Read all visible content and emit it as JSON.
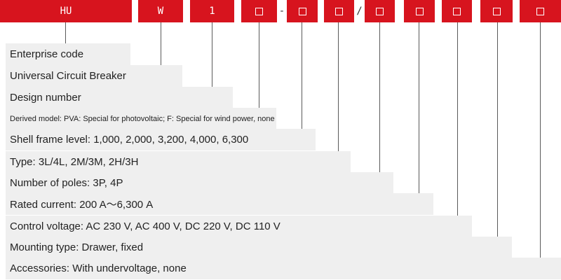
{
  "code_segments": [
    {
      "label": "HU",
      "square": false
    },
    {
      "label": "W",
      "square": false
    },
    {
      "label": "1",
      "square": false
    },
    {
      "label": "",
      "square": true
    },
    {
      "label": "",
      "square": true
    },
    {
      "label": "",
      "square": true
    },
    {
      "label": "",
      "square": true
    },
    {
      "label": "",
      "square": true
    },
    {
      "label": "",
      "square": true
    },
    {
      "label": "",
      "square": true
    },
    {
      "label": "",
      "square": true
    }
  ],
  "separators": [
    "-",
    "/"
  ],
  "rows": [
    "Enterprise code",
    "Universal Circuit Breaker",
    "Design number",
    "Derived model: PVA: Special for photovoltaic; F: Special for wind power, none",
    "Shell frame level: 1,000, 2,000, 3,200, 4,000, 6,300",
    "Type: 3L/4L, 2M/3M, 2H/3H",
    "Number of poles: 3P, 4P",
    "Rated current: 200 A〜6,300 A",
    "Control voltage: AC 230 V, AC 400 V, DC 220 V, DC 110 V",
    "Mounting type: Drawer, fixed",
    "Accessories: With undervoltage, none"
  ],
  "colors": {
    "accent": "#d7141e",
    "row_bg": "#efefef",
    "line": "#5a5a5a"
  }
}
